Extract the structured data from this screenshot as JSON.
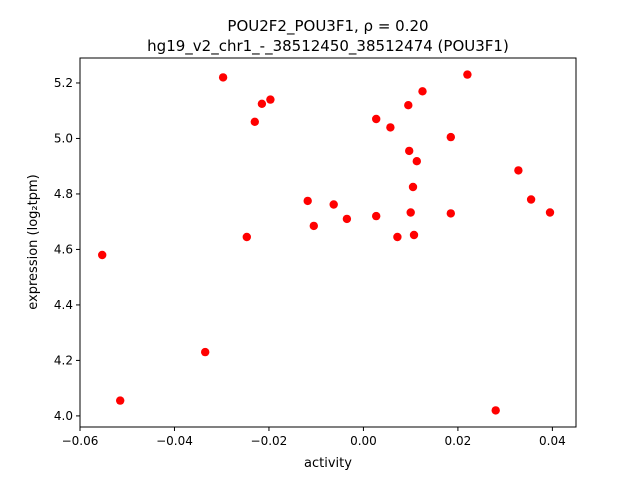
{
  "chart_data": {
    "type": "scatter",
    "title_line1": "POU2F2_POU3F1, ρ = 0.20",
    "title_line2": "hg19_v2_chr1_-_38512450_38512474 (POU3F1)",
    "xlabel": "activity",
    "ylabel": "expression (log₂tpm)",
    "xlim": [
      -0.06,
      0.045
    ],
    "ylim": [
      3.96,
      5.29
    ],
    "xticks": [
      -0.06,
      -0.04,
      -0.02,
      0.0,
      0.02,
      0.04
    ],
    "xtick_labels": [
      "−0.06",
      "−0.04",
      "−0.02",
      "0.00",
      "0.02",
      "0.04"
    ],
    "yticks": [
      4.0,
      4.2,
      4.4,
      4.6,
      4.8,
      5.0,
      5.2
    ],
    "ytick_labels": [
      "4.0",
      "4.2",
      "4.4",
      "4.6",
      "4.8",
      "5.0",
      "5.2"
    ],
    "grid": false,
    "marker_color": "#ff0000",
    "points": [
      {
        "x": -0.0553,
        "y": 4.58
      },
      {
        "x": -0.0515,
        "y": 4.055
      },
      {
        "x": -0.0335,
        "y": 4.23
      },
      {
        "x": -0.0297,
        "y": 5.22
      },
      {
        "x": -0.0247,
        "y": 4.645
      },
      {
        "x": -0.023,
        "y": 5.06
      },
      {
        "x": -0.0215,
        "y": 5.125
      },
      {
        "x": -0.0197,
        "y": 5.14
      },
      {
        "x": -0.0118,
        "y": 4.775
      },
      {
        "x": -0.0105,
        "y": 4.685
      },
      {
        "x": -0.0063,
        "y": 4.762
      },
      {
        "x": -0.0035,
        "y": 4.71
      },
      {
        "x": 0.0027,
        "y": 5.07
      },
      {
        "x": 0.0027,
        "y": 4.72
      },
      {
        "x": 0.0057,
        "y": 5.04
      },
      {
        "x": 0.0072,
        "y": 4.645
      },
      {
        "x": 0.0095,
        "y": 5.12
      },
      {
        "x": 0.0097,
        "y": 4.955
      },
      {
        "x": 0.01,
        "y": 4.733
      },
      {
        "x": 0.0105,
        "y": 4.825
      },
      {
        "x": 0.0107,
        "y": 4.652
      },
      {
        "x": 0.0113,
        "y": 4.918
      },
      {
        "x": 0.0125,
        "y": 5.17
      },
      {
        "x": 0.0185,
        "y": 5.005
      },
      {
        "x": 0.0185,
        "y": 4.73
      },
      {
        "x": 0.022,
        "y": 5.23
      },
      {
        "x": 0.028,
        "y": 4.02
      },
      {
        "x": 0.0328,
        "y": 4.885
      },
      {
        "x": 0.0355,
        "y": 4.78
      },
      {
        "x": 0.0395,
        "y": 4.733
      }
    ]
  }
}
